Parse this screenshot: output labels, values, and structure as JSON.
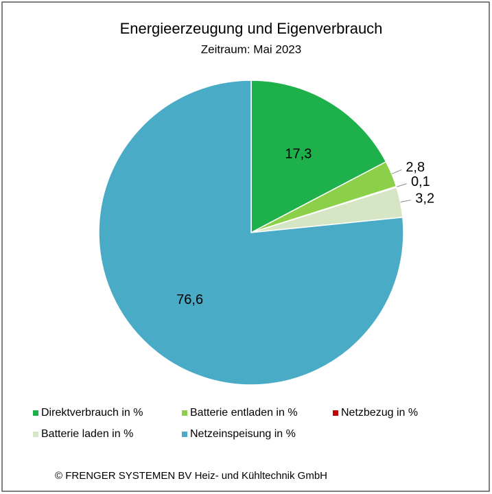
{
  "chart_data": {
    "type": "pie",
    "title": "Energieerzeugung und Eigenverbrauch",
    "subtitle": "Zeitraum: Mai 2023",
    "categories": [
      "Direktverbrauch in %",
      "Batterie entladen in %",
      "Netzbezug in %",
      "Batterie laden in %",
      "Netzeinspeisung in %"
    ],
    "values": [
      17.3,
      2.8,
      0.1,
      3.2,
      76.6
    ],
    "value_labels": [
      "17,3",
      "2,8",
      "0,1",
      "3,2",
      "76,6"
    ],
    "colors": [
      "#1eb04b",
      "#8cd049",
      "#c00000",
      "#d6e6c4",
      "#4aabc6"
    ],
    "legend": "bottom",
    "footer": "© FRENGER SYSTEMEN BV Heiz- und Kühltechnik GmbH"
  }
}
